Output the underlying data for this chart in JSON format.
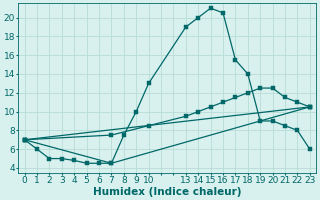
{
  "xlabel": "Humidex (Indice chaleur)",
  "background_color": "#d8f0ee",
  "grid_color": "#b8dcd6",
  "line_color": "#006868",
  "xtick_labels": [
    "0",
    "1",
    "2",
    "3",
    "4",
    "5",
    "6",
    "7",
    "8",
    "9",
    "10",
    "",
    "",
    "13",
    "14",
    "15",
    "16",
    "17",
    "18",
    "19",
    "20",
    "21",
    "22",
    "23"
  ],
  "yticks": [
    4,
    6,
    8,
    10,
    12,
    14,
    16,
    18,
    20
  ],
  "ylim": [
    3.5,
    21.5
  ],
  "line1_xi": [
    0,
    1,
    2,
    3,
    4,
    5,
    6,
    7,
    8,
    9,
    10,
    13,
    14,
    15,
    16,
    17,
    18,
    19,
    20,
    21,
    22,
    23
  ],
  "line1_y": [
    7,
    6,
    5,
    5,
    4.8,
    4.5,
    4.5,
    4.5,
    7.5,
    10,
    13,
    19,
    20,
    21,
    20.5,
    15.5,
    14,
    9,
    9,
    8.5,
    8,
    6
  ],
  "line2_xi": [
    0,
    23
  ],
  "line2_y": [
    7,
    10.5
  ],
  "line3_xi": [
    0,
    7,
    23
  ],
  "line3_y": [
    7,
    4.5,
    10.5
  ],
  "line4_xi": [
    0,
    7,
    10,
    13,
    14,
    15,
    16,
    17,
    18,
    19,
    20,
    21,
    22,
    23
  ],
  "line4_y": [
    7,
    7.5,
    8.5,
    9.5,
    10,
    10.5,
    11,
    11.5,
    12,
    12.5,
    12.5,
    11.5,
    11,
    10.5
  ],
  "tick_fontsize": 6.5,
  "xlabel_fontsize": 7.5
}
